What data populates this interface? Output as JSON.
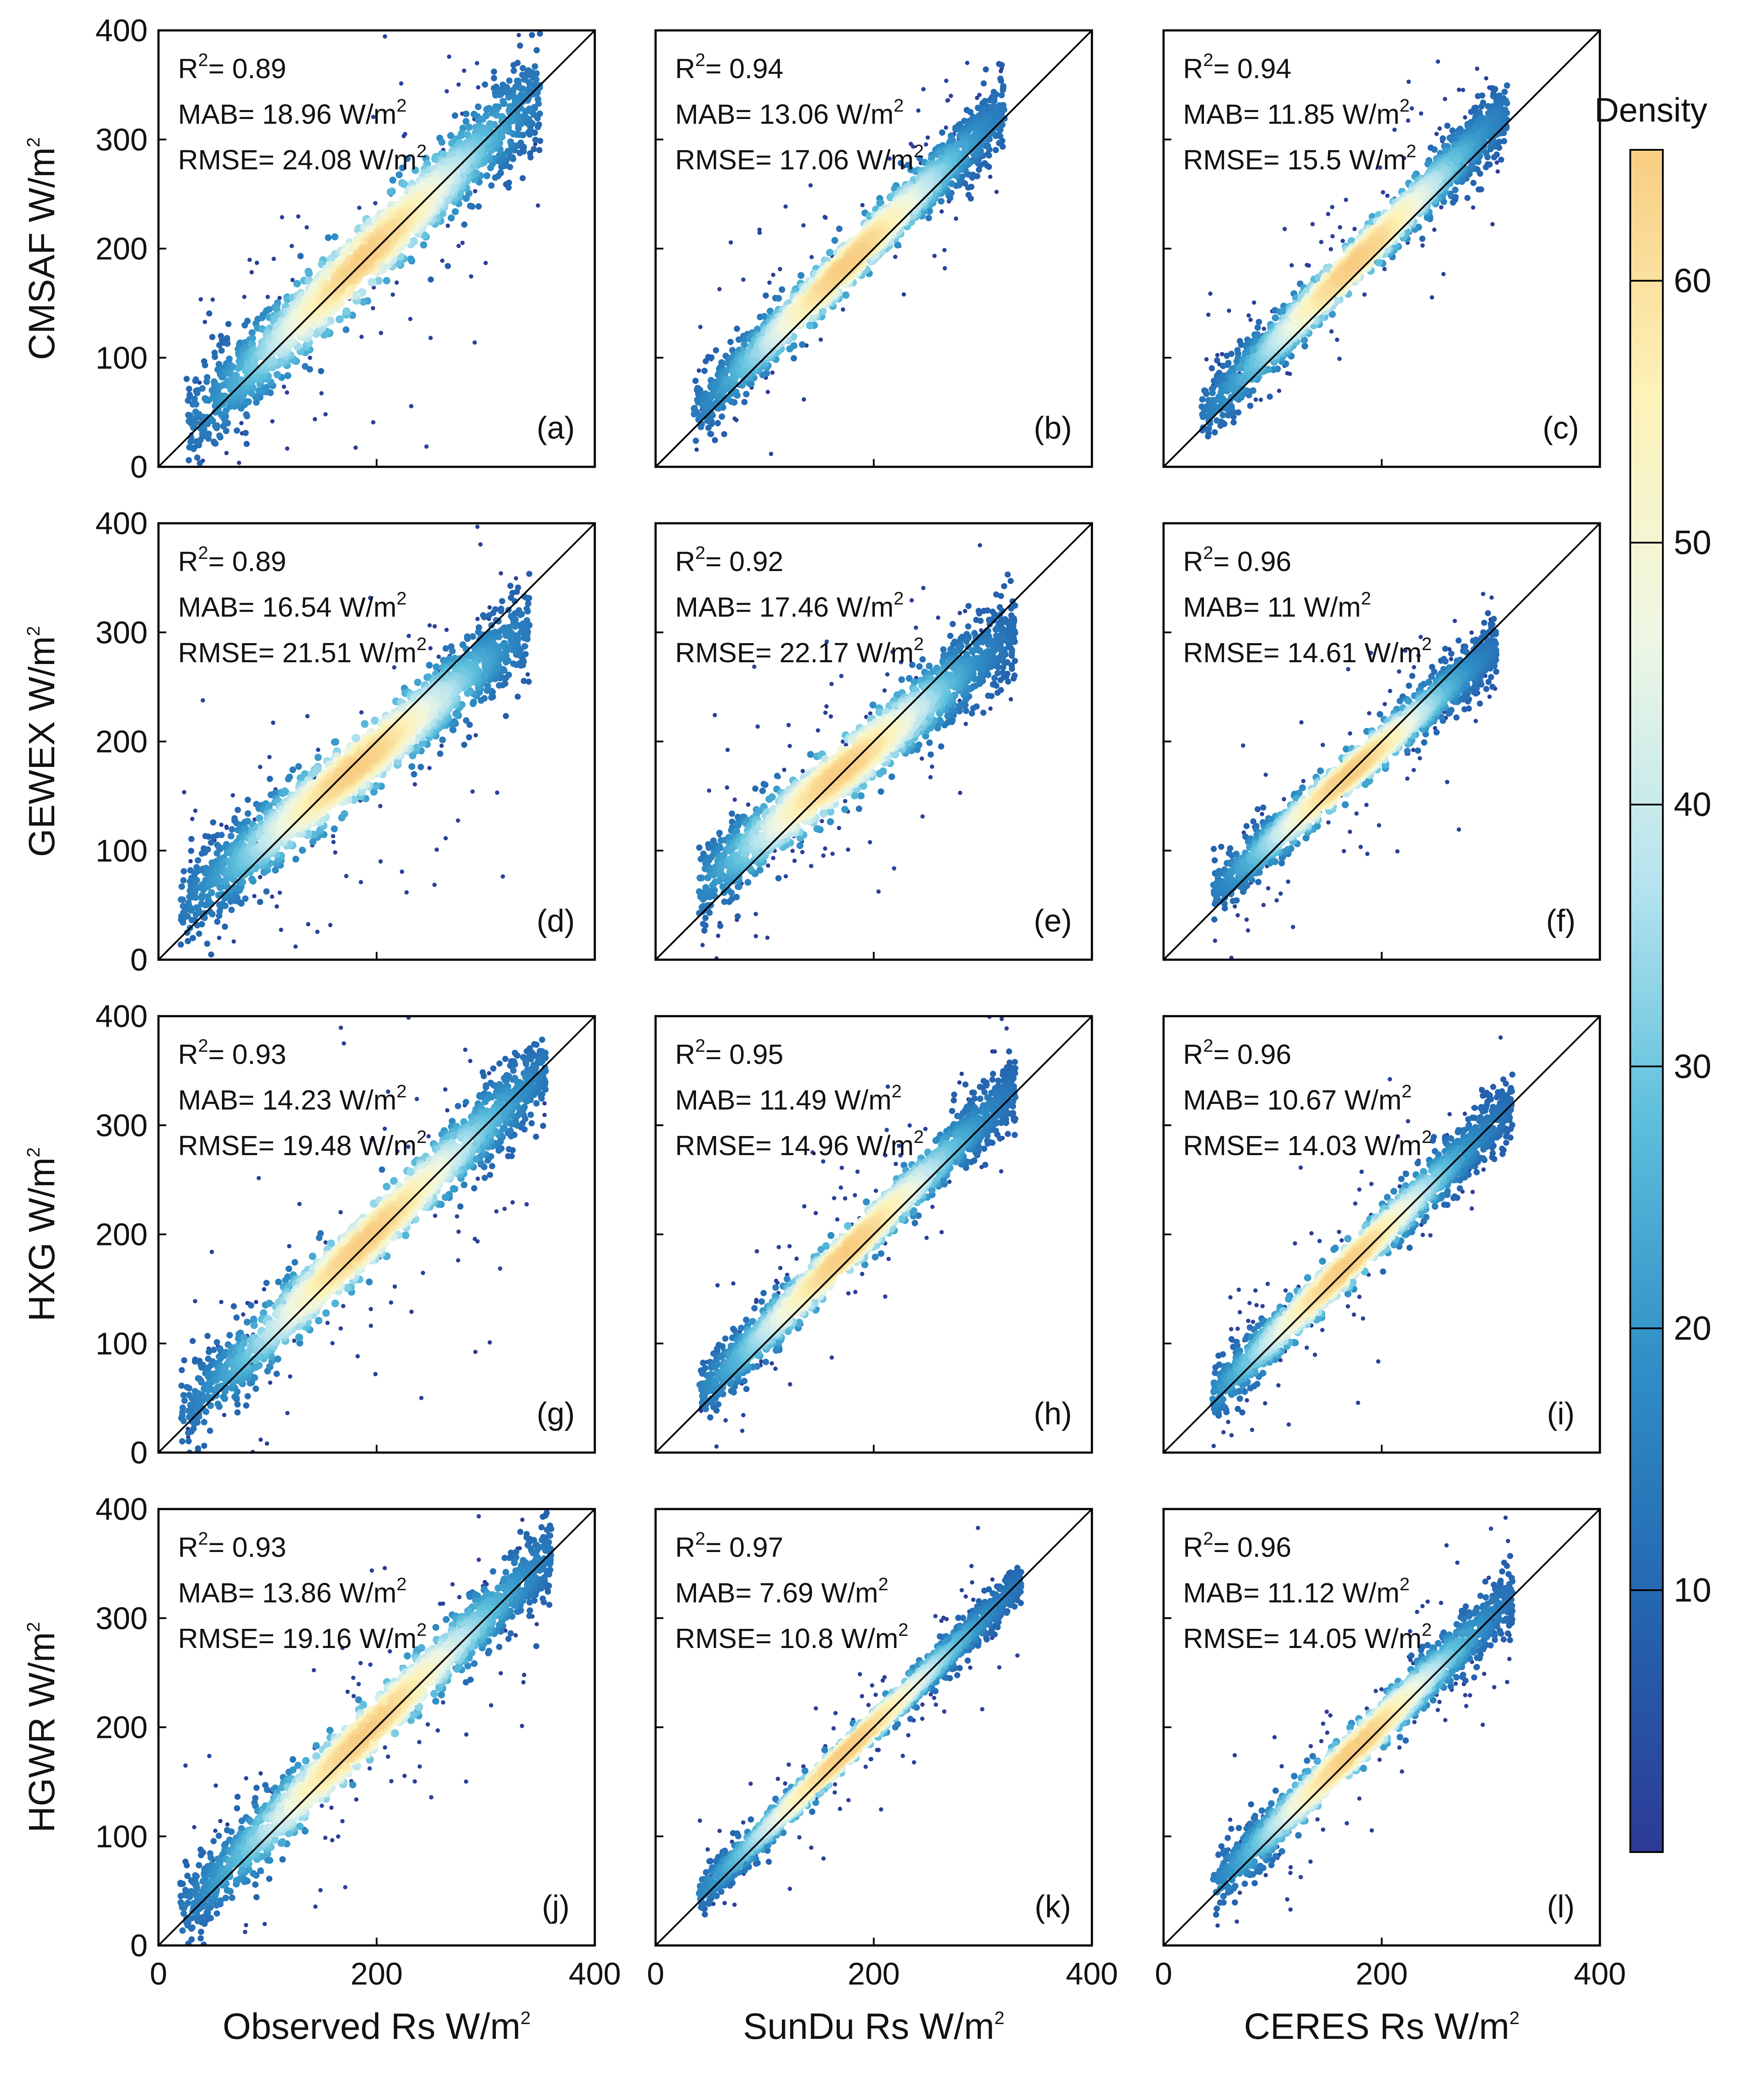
{
  "chart_data": {
    "type": "scatter",
    "description_style": "density-scatter",
    "rows": [
      {
        "ylabel": "CMSAF",
        "yunit_base": "W/m",
        "yunit_exp": "2"
      },
      {
        "ylabel": "GEWEX",
        "yunit_base": "W/m",
        "yunit_exp": "2"
      },
      {
        "ylabel": "HXG",
        "yunit_base": "W/m",
        "yunit_exp": "2"
      },
      {
        "ylabel": "HGWR",
        "yunit_base": "W/m",
        "yunit_exp": "2"
      }
    ],
    "columns": [
      {
        "xlabel": "Observed Rs  W/m",
        "xunit_exp": "2"
      },
      {
        "xlabel": "SunDu Rs W/m",
        "xunit_exp": "2"
      },
      {
        "xlabel": "CERES Rs W/m",
        "xunit_exp": "2"
      }
    ],
    "axis": {
      "xlim": [
        0,
        400
      ],
      "ylim": [
        0,
        400
      ],
      "xticks": [
        "0",
        "200",
        "400"
      ],
      "yticks": [
        "0",
        "100",
        "200",
        "300",
        "400"
      ]
    },
    "stat_labels": {
      "r2": "R",
      "r2_exp": "2",
      "mab": "MAB=",
      "rmse": "RMSE=",
      "unit": "W/m",
      "unit_exp": "2"
    },
    "panels": [
      {
        "tag": "(a)",
        "r2": "= 0.89",
        "mab": " 18.96 ",
        "rmse": " 24.08 ",
        "slope": 0.95,
        "offset": 12,
        "spread": 24,
        "xmin": 25,
        "xmax": 350,
        "peak": 190
      },
      {
        "tag": "(b)",
        "r2": "= 0.94",
        "mab": " 13.06 ",
        "rmse": " 17.06 ",
        "slope": 0.98,
        "offset": 14,
        "spread": 16,
        "xmin": 35,
        "xmax": 320,
        "peak": 175
      },
      {
        "tag": "(c)",
        "r2": "= 0.94",
        "mab": " 11.85 ",
        "rmse": " 15.5 ",
        "slope": 1.0,
        "offset": 12,
        "spread": 15,
        "xmin": 35,
        "xmax": 315,
        "peak": 175
      },
      {
        "tag": "(d)",
        "r2": "= 0.89",
        "mab": " 16.54 ",
        "rmse": " 21.51 ",
        "slope": 0.8,
        "offset": 32,
        "spread": 21,
        "xmin": 20,
        "xmax": 340,
        "peak": 180
      },
      {
        "tag": "(e)",
        "r2": "= 0.92",
        "mab": " 17.46 ",
        "rmse": " 22.17 ",
        "slope": 0.8,
        "offset": 36,
        "spread": 20,
        "xmin": 40,
        "xmax": 330,
        "peak": 170
      },
      {
        "tag": "(f)",
        "r2": "= 0.96",
        "mab": " 11 ",
        "rmse": " 14.61 ",
        "slope": 0.86,
        "offset": 24,
        "spread": 13,
        "xmin": 45,
        "xmax": 305,
        "peak": 170
      },
      {
        "tag": "(g)",
        "r2": "= 0.93",
        "mab": " 14.23 ",
        "rmse": " 19.48 ",
        "slope": 0.95,
        "offset": 14,
        "spread": 20,
        "xmin": 20,
        "xmax": 355,
        "peak": 190
      },
      {
        "tag": "(h)",
        "r2": "= 0.95",
        "mab": " 11.49 ",
        "rmse": " 14.96 ",
        "slope": 0.97,
        "offset": 14,
        "spread": 15,
        "xmin": 40,
        "xmax": 330,
        "peak": 175
      },
      {
        "tag": "(i)",
        "r2": "= 0.96",
        "mab": " 10.67 ",
        "rmse": " 14.03 ",
        "slope": 0.97,
        "offset": 8,
        "spread": 14,
        "xmin": 45,
        "xmax": 320,
        "peak": 165
      },
      {
        "tag": "(j)",
        "r2": "= 0.93",
        "mab": " 13.86 ",
        "rmse": " 19.16 ",
        "slope": 0.97,
        "offset": 10,
        "spread": 19,
        "xmin": 20,
        "xmax": 360,
        "peak": 190
      },
      {
        "tag": "(k)",
        "r2": "= 0.97",
        "mab": " 7.69 ",
        "rmse": " 10.8 ",
        "slope": 0.97,
        "offset": 8,
        "spread": 10,
        "xmin": 40,
        "xmax": 335,
        "peak": 175
      },
      {
        "tag": "(l)",
        "r2": "= 0.96",
        "mab": " 11.12 ",
        "rmse": " 14.05 ",
        "slope": 0.97,
        "offset": 10,
        "spread": 14,
        "xmin": 45,
        "xmax": 320,
        "peak": 175
      }
    ],
    "colorbar": {
      "title": "Density",
      "range": [
        0,
        65
      ],
      "ticks": [
        "10",
        "20",
        "30",
        "40",
        "50",
        "60"
      ],
      "tick_values": [
        10,
        20,
        30,
        40,
        50,
        60
      ],
      "stops": [
        "#2c3a96",
        "#2465b0",
        "#2f8fc6",
        "#5cbfdc",
        "#b7e4ef",
        "#eef7e4",
        "#fdf2b8",
        "#f8cd82"
      ]
    }
  }
}
